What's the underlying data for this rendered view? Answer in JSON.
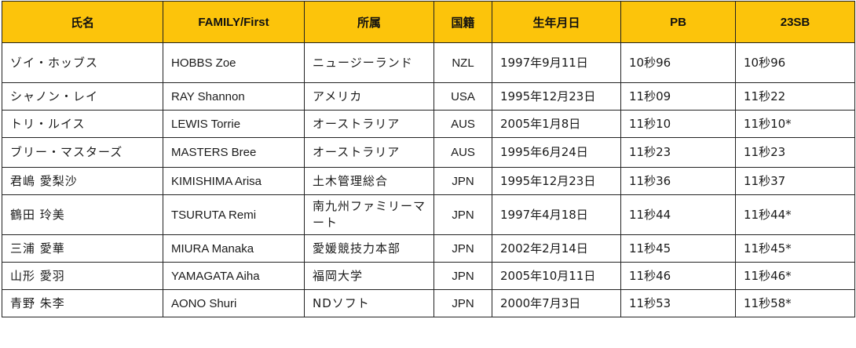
{
  "table": {
    "headers": [
      "氏名",
      "FAMILY/First",
      "所属",
      "国籍",
      "生年月日",
      "PB",
      "23SB"
    ],
    "rows": [
      {
        "name": "ゾイ・ホッブス",
        "family_first": "HOBBS Zoe",
        "affiliation": "ニュージーランド",
        "nationality": "NZL",
        "birthdate": "1997年9月11日",
        "pb": "10秒96",
        "sb": "10秒96"
      },
      {
        "name": "シャノン・レイ",
        "family_first": "RAY Shannon",
        "affiliation": "アメリカ",
        "nationality": "USA",
        "birthdate": "1995年12月23日",
        "pb": "11秒09",
        "sb": "11秒22"
      },
      {
        "name": "トリ・ルイス",
        "family_first": "LEWIS Torrie",
        "affiliation": "オーストラリア",
        "nationality": "AUS",
        "birthdate": "2005年1月8日",
        "pb": "11秒10",
        "sb": "11秒10*"
      },
      {
        "name": "ブリー・マスターズ",
        "family_first": "MASTERS Bree",
        "affiliation": "オーストラリア",
        "nationality": "AUS",
        "birthdate": "1995年6月24日",
        "pb": "11秒23",
        "sb": "11秒23"
      },
      {
        "name": "君嶋 愛梨沙",
        "family_first": "KIMISHIMA Arisa",
        "affiliation": "土木管理総合",
        "nationality": "JPN",
        "birthdate": "1995年12月23日",
        "pb": "11秒36",
        "sb": "11秒37"
      },
      {
        "name": "鶴田 玲美",
        "family_first": "TSURUTA Remi",
        "affiliation": "南九州ファミリーマート",
        "nationality": "JPN",
        "birthdate": "1997年4月18日",
        "pb": "11秒44",
        "sb": "11秒44*"
      },
      {
        "name": "三浦 愛華",
        "family_first": "MIURA Manaka",
        "affiliation": "愛媛競技力本部",
        "nationality": "JPN",
        "birthdate": "2002年2月14日",
        "pb": "11秒45",
        "sb": "11秒45*"
      },
      {
        "name": "山形 愛羽",
        "family_first": "YAMAGATA Aiha",
        "affiliation": "福岡大学",
        "nationality": "JPN",
        "birthdate": "2005年10月11日",
        "pb": "11秒46",
        "sb": "11秒46*"
      },
      {
        "name": "青野 朱李",
        "family_first": "AONO Shuri",
        "affiliation": "NDソフト",
        "nationality": "JPN",
        "birthdate": "2000年7月3日",
        "pb": "11秒53",
        "sb": "11秒58*"
      }
    ]
  }
}
